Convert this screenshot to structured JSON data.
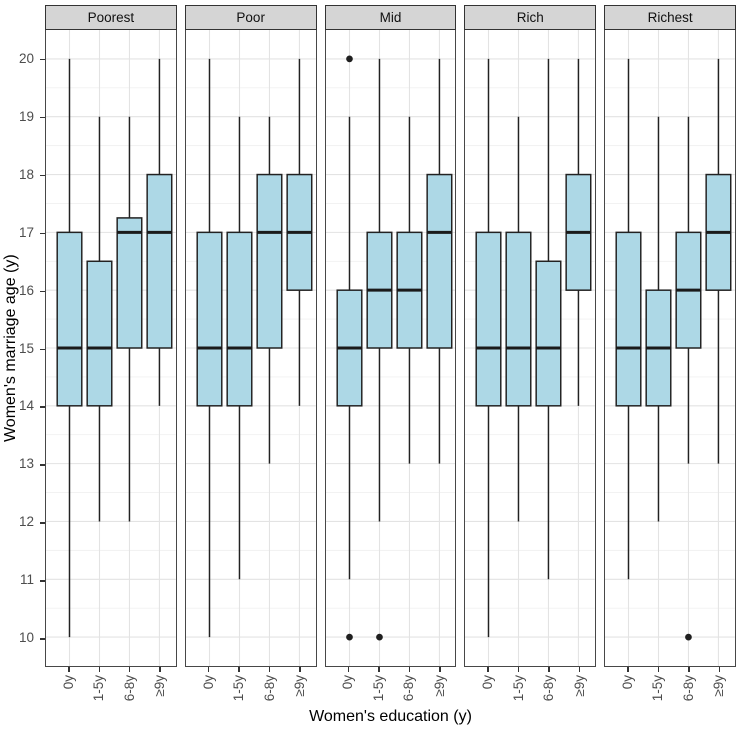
{
  "chart_data": {
    "type": "boxplot",
    "title": "",
    "xlabel": "Women's education (y)",
    "ylabel": "Women's marriage age (y)",
    "ylim": [
      9.5,
      20.5
    ],
    "yticks": [
      10,
      11,
      12,
      13,
      14,
      15,
      16,
      17,
      18,
      19,
      20
    ],
    "categories": [
      "0y",
      "1-5y",
      "6-8y",
      "≥9y"
    ],
    "legend_position": "none",
    "grid": "major and minor horizontal, major vertical",
    "facets": [
      {
        "label": "Poorest",
        "boxes": [
          {
            "category": "0y",
            "lo": 10,
            "q1": 14,
            "med": 15,
            "q3": 17,
            "hi": 20,
            "outliers": []
          },
          {
            "category": "1-5y",
            "lo": 12,
            "q1": 14,
            "med": 15,
            "q3": 16.5,
            "hi": 19,
            "outliers": []
          },
          {
            "category": "6-8y",
            "lo": 12,
            "q1": 15,
            "med": 17,
            "q3": 17.25,
            "hi": 19,
            "outliers": []
          },
          {
            "category": "≥9y",
            "lo": 14,
            "q1": 15,
            "med": 17,
            "q3": 18,
            "hi": 20,
            "outliers": []
          }
        ]
      },
      {
        "label": "Poor",
        "boxes": [
          {
            "category": "0y",
            "lo": 10,
            "q1": 14,
            "med": 15,
            "q3": 17,
            "hi": 20,
            "outliers": []
          },
          {
            "category": "1-5y",
            "lo": 11,
            "q1": 14,
            "med": 15,
            "q3": 17,
            "hi": 19,
            "outliers": []
          },
          {
            "category": "6-8y",
            "lo": 13,
            "q1": 15,
            "med": 17,
            "q3": 18,
            "hi": 19,
            "outliers": []
          },
          {
            "category": "≥9y",
            "lo": 14,
            "q1": 16,
            "med": 17,
            "q3": 18,
            "hi": 20,
            "outliers": []
          }
        ]
      },
      {
        "label": "Mid",
        "boxes": [
          {
            "category": "0y",
            "lo": 11,
            "q1": 14,
            "med": 15,
            "q3": 16,
            "hi": 19,
            "outliers": [
              10,
              20
            ]
          },
          {
            "category": "1-5y",
            "lo": 12,
            "q1": 15,
            "med": 16,
            "q3": 17,
            "hi": 20,
            "outliers": [
              10
            ]
          },
          {
            "category": "6-8y",
            "lo": 13,
            "q1": 15,
            "med": 16,
            "q3": 17,
            "hi": 19,
            "outliers": []
          },
          {
            "category": "≥9y",
            "lo": 13,
            "q1": 15,
            "med": 17,
            "q3": 18,
            "hi": 20,
            "outliers": []
          }
        ]
      },
      {
        "label": "Rich",
        "boxes": [
          {
            "category": "0y",
            "lo": 10,
            "q1": 14,
            "med": 15,
            "q3": 17,
            "hi": 20,
            "outliers": []
          },
          {
            "category": "1-5y",
            "lo": 12,
            "q1": 14,
            "med": 15,
            "q3": 17,
            "hi": 19,
            "outliers": []
          },
          {
            "category": "6-8y",
            "lo": 11,
            "q1": 14,
            "med": 15,
            "q3": 16.5,
            "hi": 20,
            "outliers": []
          },
          {
            "category": "≥9y",
            "lo": 14,
            "q1": 16,
            "med": 17,
            "q3": 18,
            "hi": 20,
            "outliers": []
          }
        ]
      },
      {
        "label": "Richest",
        "boxes": [
          {
            "category": "0y",
            "lo": 11,
            "q1": 14,
            "med": 15,
            "q3": 17,
            "hi": 20,
            "outliers": []
          },
          {
            "category": "1-5y",
            "lo": 12,
            "q1": 14,
            "med": 15,
            "q3": 16,
            "hi": 19,
            "outliers": []
          },
          {
            "category": "6-8y",
            "lo": 13,
            "q1": 15,
            "med": 16,
            "q3": 17,
            "hi": 19,
            "outliers": [
              10
            ]
          },
          {
            "category": "≥9y",
            "lo": 13,
            "q1": 16,
            "med": 17,
            "q3": 18,
            "hi": 20,
            "outliers": []
          }
        ]
      }
    ],
    "colors": {
      "box_fill": "#ADD8E6",
      "box_stroke": "#222222",
      "median": "#1a1a1a",
      "whisker": "#222222",
      "outlier": "#1f1f1f",
      "strip_bg": "#d5d5d5",
      "strip_border": "#333333",
      "panel_border": "#474747",
      "grid_major": "#e3e3e3",
      "grid_minor": "#f1f1f1",
      "tick": "#333333",
      "tick_label": "#4d4d4d",
      "title_text": "#000000"
    }
  }
}
